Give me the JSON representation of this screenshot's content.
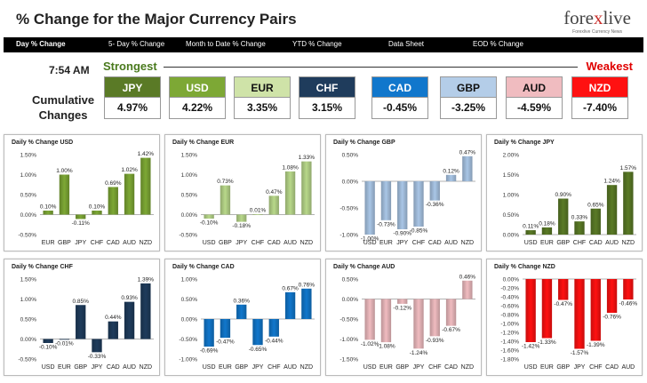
{
  "header": {
    "title": "% Change for the Major Currency Pairs",
    "logo_part1": "fore",
    "logo_x": "x",
    "logo_part2": "live",
    "logo_tagline": "Forexlive Currency News"
  },
  "tabs": [
    {
      "label": "Day % Change",
      "active": true
    },
    {
      "label": "5- Day % Change"
    },
    {
      "label": "Month to Date % Change"
    },
    {
      "label": "YTD % Change"
    },
    {
      "label": "Data Sheet"
    },
    {
      "label": "EOD % Change"
    }
  ],
  "summary": {
    "time": "7:54 AM",
    "label_line1": "Cumulative",
    "label_line2": "Changes",
    "strongest": "Strongest",
    "weakest": "Weakest",
    "currencies": [
      {
        "code": "JPY",
        "value": "4.97%",
        "bg": "#5a7a26",
        "fg": "#ffffff"
      },
      {
        "code": "USD",
        "value": "4.22%",
        "bg": "#7da835",
        "fg": "#ffffff"
      },
      {
        "code": "EUR",
        "value": "3.35%",
        "bg": "#cfe3a8",
        "fg": "#111111"
      },
      {
        "code": "CHF",
        "value": "3.15%",
        "bg": "#1f3c5c",
        "fg": "#ffffff"
      },
      {
        "code": "CAD",
        "value": "-0.45%",
        "bg": "#1177cc",
        "fg": "#ffffff"
      },
      {
        "code": "GBP",
        "value": "-3.25%",
        "bg": "#b4cde8",
        "fg": "#111111"
      },
      {
        "code": "AUD",
        "value": "-4.59%",
        "bg": "#f0bcc0",
        "fg": "#111111"
      },
      {
        "code": "NZD",
        "value": "-7.40%",
        "bg": "#ff1111",
        "fg": "#ffffff"
      }
    ]
  },
  "chart_data": [
    {
      "type": "bar",
      "title": "Daily % Change USD",
      "color": "#7da835",
      "categories": [
        "EUR",
        "GBP",
        "JPY",
        "CHF",
        "CAD",
        "AUD",
        "NZD"
      ],
      "values": [
        0.1,
        1.0,
        -0.11,
        0.1,
        0.69,
        1.02,
        1.42
      ],
      "labels": [
        "0.10%",
        "1.00%",
        "-0.11%",
        "0.10%",
        "0.69%",
        "1.02%",
        "1.42%"
      ],
      "yticks": [
        1.5,
        1.0,
        0.5,
        0.0,
        -0.5
      ],
      "yticklabels": [
        "1.50%",
        "1.00%",
        "0.50%",
        "0.00%",
        "-0.50%"
      ],
      "ylim": [
        -0.5,
        1.5
      ]
    },
    {
      "type": "bar",
      "title": "Daily % Change EUR",
      "color": "#b8d88a",
      "categories": [
        "USD",
        "GBP",
        "JPY",
        "CHF",
        "CAD",
        "AUD",
        "NZD"
      ],
      "values": [
        -0.1,
        0.73,
        -0.18,
        0.01,
        0.47,
        1.08,
        1.33
      ],
      "labels": [
        "-0.10%",
        "0.73%",
        "-0.18%",
        "0.01%",
        "0.47%",
        "1.08%",
        "1.33%"
      ],
      "yticks": [
        1.5,
        1.0,
        0.5,
        0.0,
        -0.5
      ],
      "yticklabels": [
        "1.50%",
        "1.00%",
        "0.50%",
        "0.00%",
        "-0.50%"
      ],
      "ylim": [
        -0.5,
        1.5
      ]
    },
    {
      "type": "bar",
      "title": "Daily % Change GBP",
      "color": "#a9c6e6",
      "categories": [
        "USD",
        "EUR",
        "JPY",
        "CHF",
        "CAD",
        "AUD",
        "NZD"
      ],
      "values": [
        -1.0,
        -0.73,
        -0.9,
        -0.85,
        -0.36,
        0.12,
        0.47
      ],
      "labels": [
        "-1.00%",
        "-0.73%",
        "-0.90%",
        "-0.85%",
        "-0.36%",
        "0.12%",
        "0.47%"
      ],
      "yticks": [
        0.5,
        0.0,
        -0.5,
        -1.0
      ],
      "yticklabels": [
        "0.50%",
        "0.00%",
        "-0.50%",
        "-1.00%"
      ],
      "ylim": [
        -1.0,
        0.5
      ]
    },
    {
      "type": "bar",
      "title": "Daily % Change JPY",
      "color": "#5a7a26",
      "categories": [
        "USD",
        "EUR",
        "GBP",
        "CHF",
        "CAD",
        "AUD",
        "NZD"
      ],
      "values": [
        0.11,
        0.18,
        0.9,
        0.33,
        0.65,
        1.24,
        1.57
      ],
      "labels": [
        "0.11%",
        "0.18%",
        "0.90%",
        "0.33%",
        "0.65%",
        "1.24%",
        "1.57%"
      ],
      "yticks": [
        2.0,
        1.5,
        1.0,
        0.5,
        0.0
      ],
      "yticklabels": [
        "2.00%",
        "1.50%",
        "1.00%",
        "0.50%",
        "0.00%"
      ],
      "ylim": [
        0,
        2.0
      ]
    },
    {
      "type": "bar",
      "title": "Daily % Change CHF",
      "color": "#1f3c5c",
      "categories": [
        "USD",
        "EUR",
        "GBP",
        "JPY",
        "CAD",
        "AUD",
        "NZD"
      ],
      "values": [
        -0.1,
        -0.01,
        0.85,
        -0.33,
        0.44,
        0.93,
        1.39
      ],
      "labels": [
        "-0.10%",
        "-0.01%",
        "0.85%",
        "-0.33%",
        "0.44%",
        "0.93%",
        "1.39%"
      ],
      "yticks": [
        1.5,
        1.0,
        0.5,
        0.0,
        -0.5
      ],
      "yticklabels": [
        "1.50%",
        "1.00%",
        "0.50%",
        "0.00%",
        "-0.50%"
      ],
      "ylim": [
        -0.5,
        1.5
      ]
    },
    {
      "type": "bar",
      "title": "Daily % Change CAD",
      "color": "#1177cc",
      "categories": [
        "USD",
        "EUR",
        "GBP",
        "JPY",
        "CHF",
        "AUD",
        "NZD"
      ],
      "values": [
        -0.69,
        -0.47,
        0.36,
        -0.65,
        -0.44,
        0.67,
        0.76
      ],
      "labels": [
        "-0.69%",
        "-0.47%",
        "0.36%",
        "-0.65%",
        "-0.44%",
        "0.67%",
        "0.76%"
      ],
      "yticks": [
        1.0,
        0.5,
        0.0,
        -0.5,
        -1.0
      ],
      "yticklabels": [
        "1.00%",
        "0.50%",
        "0.00%",
        "-0.50%",
        "-1.00%"
      ],
      "ylim": [
        -1.0,
        1.0
      ]
    },
    {
      "type": "bar",
      "title": "Daily % Change AUD",
      "color": "#f0bcc0",
      "categories": [
        "USD",
        "EUR",
        "GBP",
        "JPY",
        "CHF",
        "CAD",
        "NZD"
      ],
      "values": [
        -1.02,
        -1.08,
        -0.12,
        -1.24,
        -0.93,
        -0.67,
        0.46
      ],
      "labels": [
        "-1.02%",
        "-1.08%",
        "-0.12%",
        "-1.24%",
        "-0.93%",
        "-0.67%",
        "0.46%"
      ],
      "yticks": [
        0.5,
        0.0,
        -0.5,
        -1.0,
        -1.5
      ],
      "yticklabels": [
        "0.50%",
        "0.00%",
        "-0.50%",
        "-1.00%",
        "-1.50%"
      ],
      "ylim": [
        -1.5,
        0.5
      ]
    },
    {
      "type": "bar",
      "title": "Daily % Change NZD",
      "color": "#ff1111",
      "categories": [
        "USD",
        "EUR",
        "GBP",
        "JPY",
        "CHF",
        "CAD",
        "AUD"
      ],
      "values": [
        -1.42,
        -1.33,
        -0.47,
        -1.57,
        -1.39,
        -0.76,
        -0.46
      ],
      "labels": [
        "-1.42%",
        "-1.33%",
        "-0.47%",
        "-1.57%",
        "-1.39%",
        "-0.76%",
        "-0.46%"
      ],
      "yticks": [
        0.0,
        -0.2,
        -0.4,
        -0.6,
        -0.8,
        -1.0,
        -1.2,
        -1.4,
        -1.6,
        -1.8
      ],
      "yticklabels": [
        "0.00%",
        "-0.20%",
        "-0.40%",
        "-0.60%",
        "-0.80%",
        "-1.00%",
        "-1.20%",
        "-1.40%",
        "-1.60%",
        "-1.80%"
      ],
      "ylim": [
        -1.8,
        0
      ]
    }
  ]
}
